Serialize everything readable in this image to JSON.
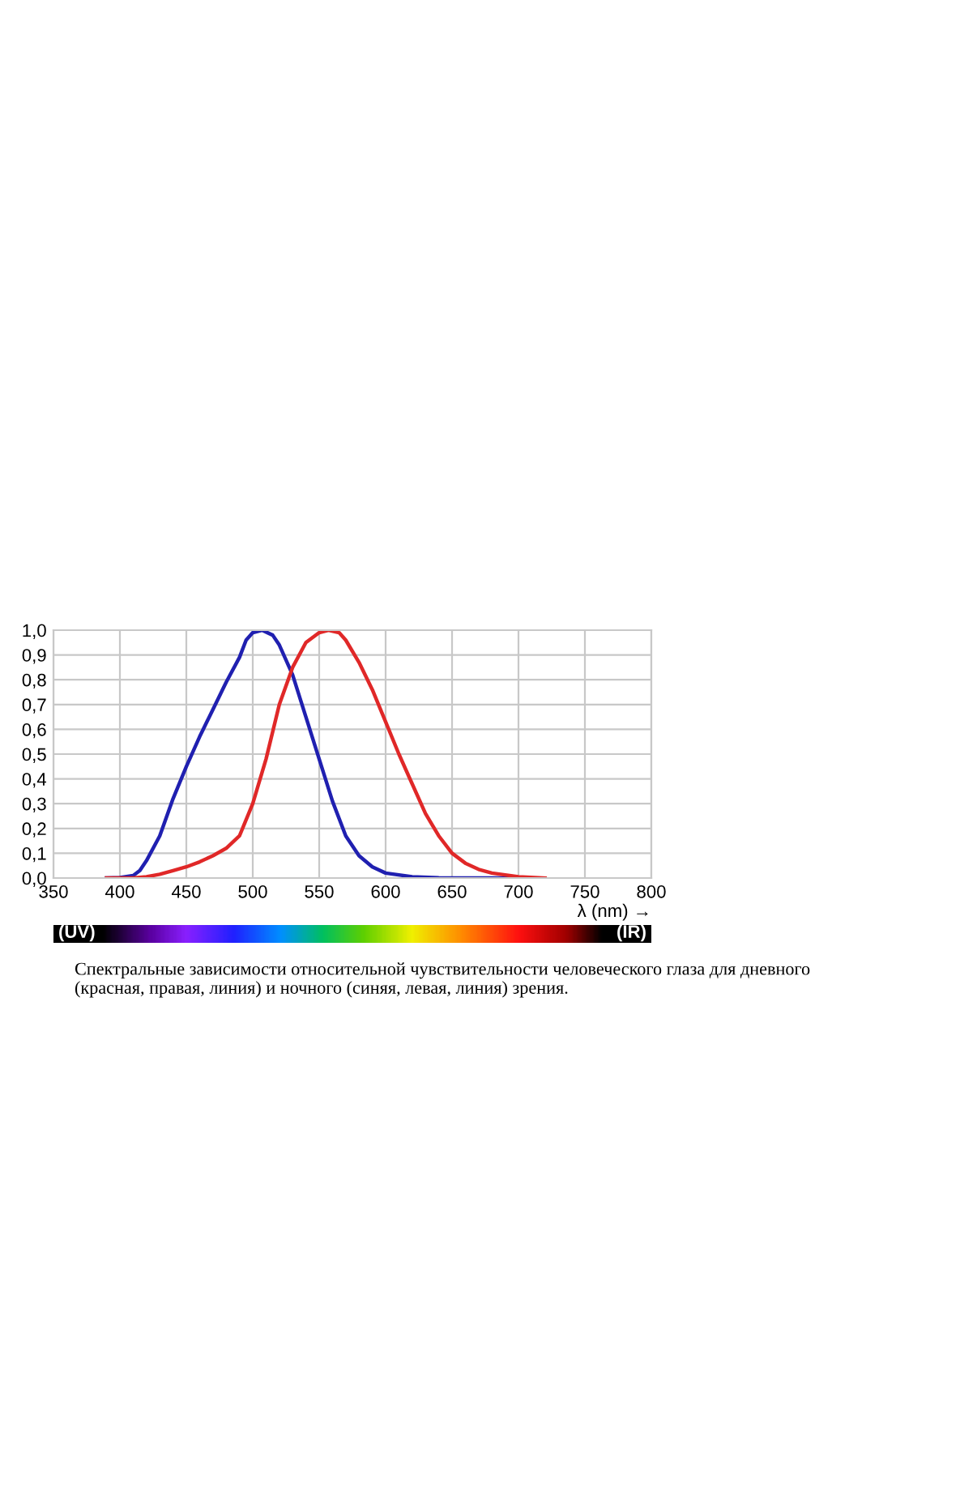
{
  "chart_data": {
    "type": "line",
    "xlabel": "λ (nm) →",
    "series": [
      {
        "color": "#2020b0",
        "x": [
          390,
          400,
          410,
          415,
          420,
          430,
          440,
          450,
          460,
          470,
          480,
          490,
          495,
          500,
          507,
          515,
          520,
          530,
          540,
          550,
          560,
          570,
          580,
          590,
          600,
          620,
          640,
          700
        ],
        "values": [
          0.0,
          0.002,
          0.01,
          0.03,
          0.07,
          0.17,
          0.32,
          0.45,
          0.57,
          0.68,
          0.79,
          0.89,
          0.96,
          0.99,
          1.0,
          0.98,
          0.94,
          0.82,
          0.65,
          0.48,
          0.31,
          0.17,
          0.09,
          0.045,
          0.02,
          0.005,
          0.001,
          0.0
        ]
      },
      {
        "color": "#e02828",
        "x": [
          390,
          410,
          420,
          430,
          440,
          450,
          460,
          470,
          480,
          490,
          500,
          510,
          520,
          530,
          540,
          550,
          557,
          565,
          570,
          580,
          590,
          600,
          610,
          620,
          630,
          640,
          650,
          660,
          670,
          680,
          700,
          720
        ],
        "values": [
          0.0,
          0.0,
          0.005,
          0.015,
          0.03,
          0.045,
          0.065,
          0.09,
          0.12,
          0.17,
          0.3,
          0.48,
          0.7,
          0.85,
          0.95,
          0.99,
          1.0,
          0.99,
          0.96,
          0.87,
          0.76,
          0.63,
          0.5,
          0.38,
          0.26,
          0.17,
          0.1,
          0.06,
          0.035,
          0.02,
          0.005,
          0.0
        ]
      }
    ],
    "xlim": [
      350,
      800
    ],
    "xticks": [
      350,
      400,
      450,
      500,
      550,
      600,
      650,
      700,
      750,
      800
    ],
    "ylim": [
      0,
      1
    ],
    "yticks": [
      {
        "value": 0,
        "label": "0,0"
      },
      {
        "value": 0.1,
        "label": "0,1"
      },
      {
        "value": 0.2,
        "label": "0,2"
      },
      {
        "value": 0.3,
        "label": "0,3"
      },
      {
        "value": 0.4,
        "label": "0,4"
      },
      {
        "value": 0.5,
        "label": "0,5"
      },
      {
        "value": 0.6,
        "label": "0,6"
      },
      {
        "value": 0.7,
        "label": "0,7"
      },
      {
        "value": 0.8,
        "label": "0,8"
      },
      {
        "value": 0.9,
        "label": "0,9"
      },
      {
        "value": 1,
        "label": "1,0"
      }
    ],
    "grid": true,
    "annotations": [
      "(UV)",
      "(IR)",
      "Спектральные зависимости относительной чувствительности человеческого глаза для дневного (красная, правая, линия) и ночного (синяя, левая, линия) зрения."
    ]
  }
}
